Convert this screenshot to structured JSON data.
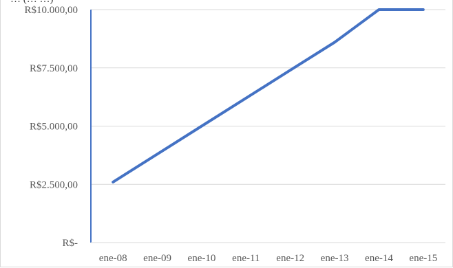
{
  "chart_data": {
    "type": "line",
    "title_fragment": "… (… …)",
    "categories": [
      "ene-08",
      "ene-09",
      "ene-10",
      "ene-11",
      "ene-12",
      "ene-13",
      "ene-14",
      "ene-15"
    ],
    "series": [
      {
        "values": [
          2600,
          3800,
          5000,
          6200,
          7400,
          8600,
          10000,
          10000
        ],
        "color": "#4472c4"
      }
    ],
    "y_ticks": [
      0,
      2500,
      5000,
      7500,
      10000
    ],
    "y_tick_labels": [
      "R$-",
      "R$2.500,00",
      "R$5.000,00",
      "R$7.500,00",
      "R$10.000,00"
    ],
    "ylim": [
      0,
      10000
    ],
    "grid": true,
    "legend": "none",
    "axis_color": "#4472c4"
  }
}
